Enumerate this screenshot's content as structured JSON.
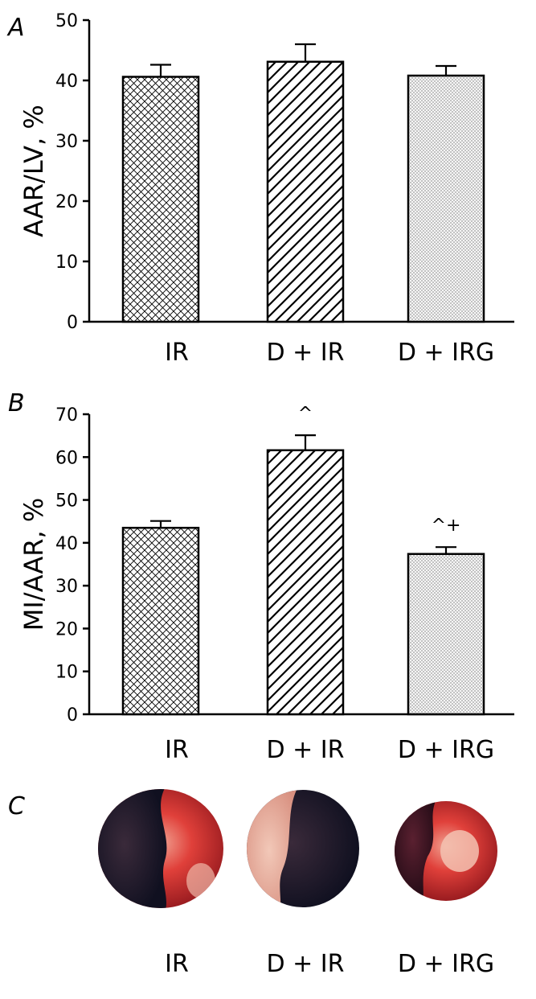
{
  "panels": {
    "A": {
      "letter": "A"
    },
    "B": {
      "letter": "B"
    },
    "C": {
      "letter": "C",
      "labels": [
        "IR",
        "D + IR",
        "D + IRG"
      ]
    }
  },
  "chart_data": [
    {
      "type": "bar",
      "panel": "A",
      "title": "",
      "xlabel": "",
      "ylabel": "AAR/LV, %",
      "ylim": [
        0,
        50
      ],
      "yticks": [
        0,
        10,
        20,
        30,
        40,
        50
      ],
      "categories": [
        "IR",
        "D + IR",
        "D + IRG"
      ],
      "values": [
        40.6,
        43.1,
        40.8
      ],
      "errors": [
        2.0,
        2.9,
        1.6
      ],
      "markers": [
        "",
        "",
        ""
      ],
      "patterns": [
        "crosshatch",
        "diagonal",
        "dots"
      ]
    },
    {
      "type": "bar",
      "panel": "B",
      "title": "",
      "xlabel": "",
      "ylabel": "MI/AAR, %",
      "ylim": [
        0,
        70
      ],
      "yticks": [
        0,
        10,
        20,
        30,
        40,
        50,
        60,
        70
      ],
      "categories": [
        "IR",
        "D + IR",
        "D + IRG"
      ],
      "values": [
        43.5,
        61.6,
        37.4
      ],
      "errors": [
        1.6,
        3.5,
        1.6
      ],
      "markers": [
        "",
        "^",
        "^+"
      ],
      "patterns": [
        "crosshatch",
        "diagonal",
        "dots"
      ]
    }
  ]
}
